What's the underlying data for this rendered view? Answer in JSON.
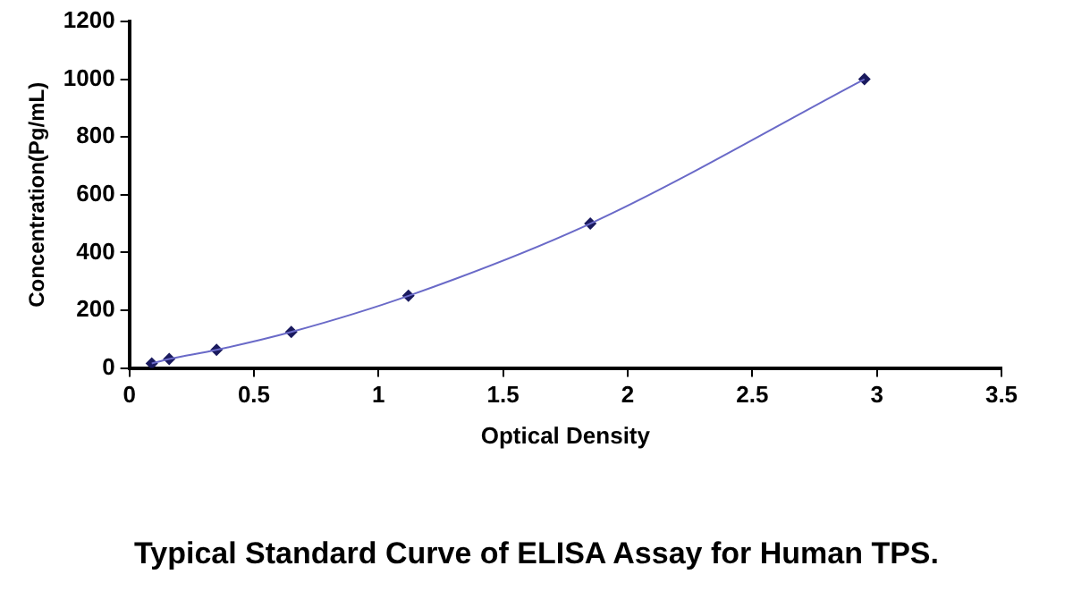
{
  "chart_data": {
    "type": "scatter",
    "title": "Typical Standard Curve of ELISA Assay for Human TPS.",
    "xlabel": "Optical Density",
    "ylabel": "Concentration(Pg/mL)",
    "series": [
      {
        "type": "line",
        "color": "#6a6ac8",
        "x": [
          0.09,
          0.16,
          0.35,
          0.65,
          1.12,
          1.85,
          2.95
        ],
        "values": [
          16,
          31,
          63,
          125,
          250,
          500,
          1000
        ],
        "marker": "none"
      },
      {
        "type": "scatter",
        "color": "#1a1a5e",
        "x": [
          0.09,
          0.16,
          0.35,
          0.65,
          1.12,
          1.85,
          2.95
        ],
        "values": [
          16,
          31,
          63,
          125,
          250,
          500,
          1000
        ],
        "marker": "diamond"
      }
    ],
    "xlim": [
      0,
      3.5
    ],
    "xticks": [
      0,
      0.5,
      1,
      1.5,
      2,
      2.5,
      3,
      3.5
    ],
    "ylim": [
      0,
      1200
    ],
    "yticks": [
      0,
      200,
      400,
      600,
      800,
      1000,
      1200
    ],
    "grid": false,
    "legend": false
  }
}
